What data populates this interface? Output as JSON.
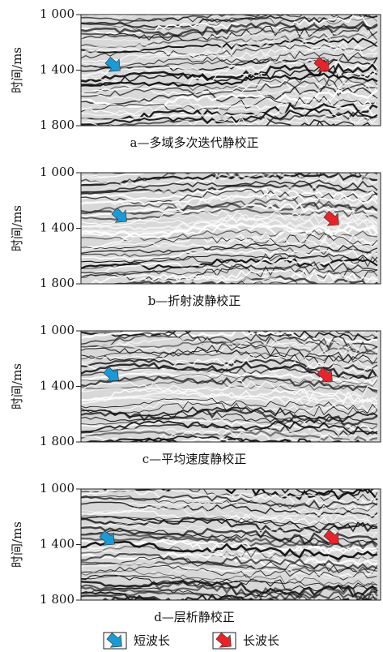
{
  "panels": [
    {
      "y_axis_label": "时间/ms",
      "y_ticks": [
        "1 000",
        "1 400",
        "1 800"
      ],
      "caption": "a—多域多次迭代静校正"
    },
    {
      "y_axis_label": "时间/ms",
      "y_ticks": [
        "1 000",
        "1 400",
        "1 800"
      ],
      "caption": "b—折射波静校正"
    },
    {
      "y_axis_label": "时间/ms",
      "y_ticks": [
        "1 000",
        "1 400",
        "1 800"
      ],
      "caption": "c—平均速度静校正"
    },
    {
      "y_axis_label": "时间/ms",
      "y_ticks": [
        "1 000",
        "1 400",
        "1 800"
      ],
      "caption": "d—层析静校正"
    }
  ],
  "legend": [
    {
      "label": "短波长"
    },
    {
      "label": "长波长"
    }
  ]
}
